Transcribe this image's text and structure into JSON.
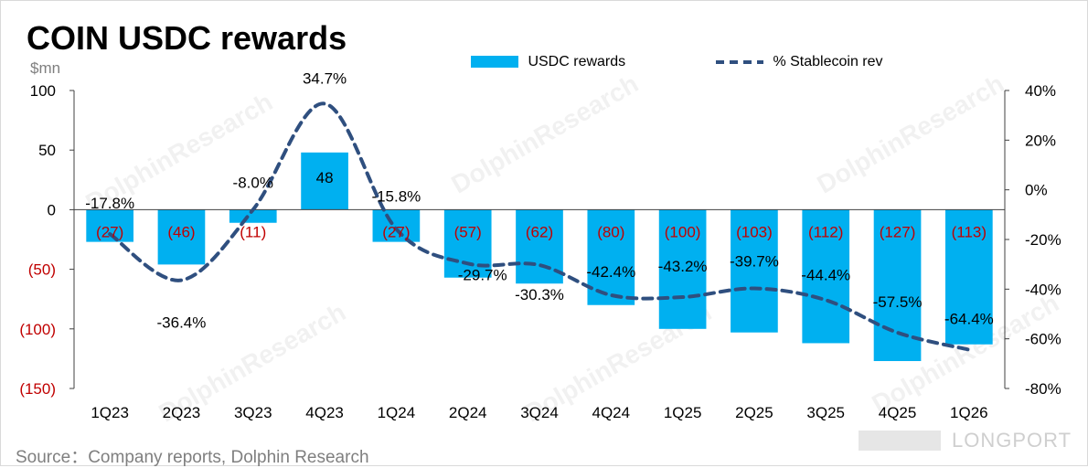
{
  "header": {
    "title": "COIN USDC rewards",
    "unit": "$mn"
  },
  "legend": {
    "bar_label": "USDC rewards",
    "line_label": "% Stablecoin rev"
  },
  "footer": {
    "source": "Source：Company reports, Dolphin Research",
    "brand": "LONGPORT"
  },
  "watermark": "DolphinResearch",
  "colors": {
    "bar": "#00b0f0",
    "line": "#2f4f7f",
    "negative_label": "#c00000",
    "axis": "#404040"
  },
  "chart_data": {
    "type": "bar",
    "title": "COIN USDC rewards",
    "categories": [
      "1Q23",
      "2Q23",
      "3Q23",
      "4Q23",
      "1Q24",
      "2Q24",
      "3Q24",
      "4Q24",
      "1Q25",
      "2Q25",
      "3Q25",
      "4Q25",
      "1Q26"
    ],
    "series": [
      {
        "name": "USDC rewards",
        "type": "bar",
        "axis": "left",
        "values": [
          -27,
          -46,
          -11,
          48,
          -27,
          -57,
          -62,
          -80,
          -100,
          -103,
          -112,
          -127,
          -113
        ],
        "labels": [
          "(27)",
          "(46)",
          "(11)",
          "48",
          "(27)",
          "(57)",
          "(62)",
          "(80)",
          "(100)",
          "(103)",
          "(112)",
          "(127)",
          "(113)"
        ]
      },
      {
        "name": "% Stablecoin rev",
        "type": "line",
        "axis": "right",
        "style": "dashed",
        "values": [
          -17.8,
          -36.4,
          -8.0,
          34.7,
          -15.8,
          -29.7,
          -30.3,
          -42.4,
          -43.2,
          -39.7,
          -44.4,
          -57.5,
          -64.4
        ],
        "labels": [
          "-17.8%",
          "-36.4%",
          "-8.0%",
          "34.7%",
          "-15.8%",
          "-29.7%",
          "-30.3%",
          "-42.4%",
          "-43.2%",
          "-39.7%",
          "-44.4%",
          "-57.5%",
          "-64.4%"
        ]
      }
    ],
    "ylabel": "$mn",
    "ylim": [
      -150,
      100
    ],
    "y_ticks": [
      100,
      50,
      0,
      -50,
      -100,
      -150
    ],
    "y_tick_labels": [
      "100",
      "50",
      "0",
      "(50)",
      "(100)",
      "(150)"
    ],
    "y2lim": [
      -80,
      40
    ],
    "y2_ticks": [
      40,
      20,
      0,
      -20,
      -40,
      -60,
      -80
    ],
    "y2_tick_labels": [
      "40%",
      "20%",
      "0%",
      "-20%",
      "-40%",
      "-60%",
      "-80%"
    ],
    "grid": false,
    "legend_position": "top"
  }
}
